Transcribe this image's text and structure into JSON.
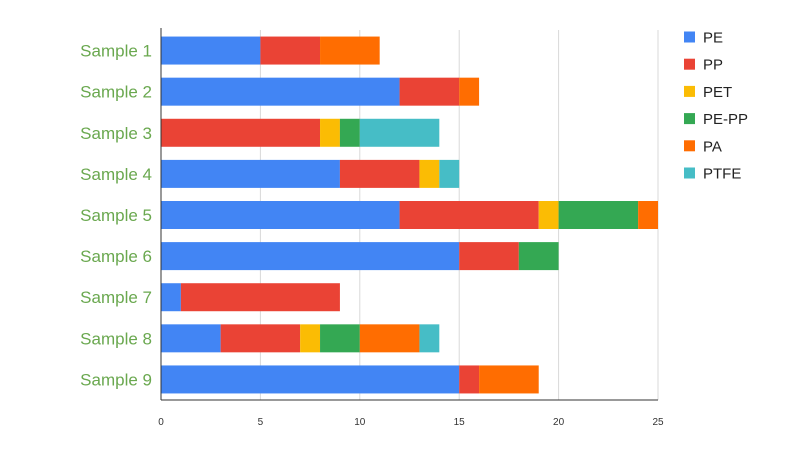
{
  "chart_data": {
    "type": "bar",
    "orientation": "horizontal",
    "stacked": true,
    "title": "",
    "xlabel": "",
    "ylabel": "",
    "xlim": [
      0,
      25
    ],
    "x_ticks": [
      "0",
      "5",
      "10",
      "15",
      "20",
      "25"
    ],
    "grid": true,
    "legend_position": "right",
    "label_color": "#6aa84f",
    "categories": [
      "Sample 1",
      "Sample 2",
      "Sample 3",
      "Sample 4",
      "Sample 5",
      "Sample 6",
      "Sample 7",
      "Sample 8",
      "Sample 9"
    ],
    "series": [
      {
        "name": "PE",
        "color": "#4285f4",
        "values": [
          5,
          12,
          0,
          9,
          12,
          15,
          1,
          3,
          15
        ]
      },
      {
        "name": "PP",
        "color": "#ea4335",
        "values": [
          3,
          3,
          8,
          4,
          7,
          3,
          8,
          4,
          1
        ]
      },
      {
        "name": "PET",
        "color": "#fbbc04",
        "values": [
          0,
          0,
          1,
          1,
          1,
          0,
          0,
          1,
          0
        ]
      },
      {
        "name": "PE-PP",
        "color": "#34a853",
        "values": [
          0,
          0,
          1,
          0,
          4,
          2,
          0,
          2,
          0
        ]
      },
      {
        "name": "PA",
        "color": "#ff6d01",
        "values": [
          3,
          1,
          0,
          0,
          1,
          0,
          0,
          3,
          3
        ]
      },
      {
        "name": "PTFE",
        "color": "#46bdc6",
        "values": [
          0,
          0,
          4,
          1,
          0,
          0,
          0,
          1,
          0
        ]
      }
    ]
  }
}
